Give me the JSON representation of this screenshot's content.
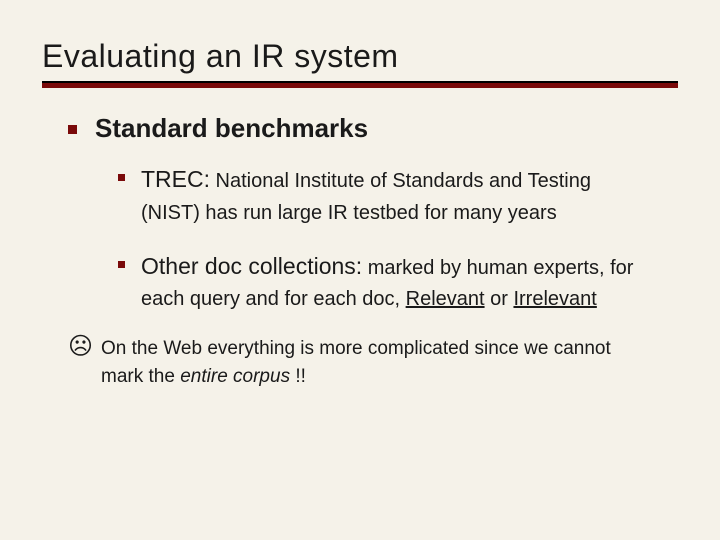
{
  "title": "Evaluating an IR system",
  "accent_color": "#7a0a0a",
  "background_color": "#f5f2e9",
  "level1": {
    "heading": "Standard benchmarks"
  },
  "item_trec": {
    "lead": "TREC:",
    "rest": " National Institute of Standards and Testing (NIST) has run large IR testbed for many years"
  },
  "item_other": {
    "lead": "Other doc collections:",
    "rest1": " marked by human experts, for each query and for each doc, ",
    "rel": "Relevant",
    "or": " or ",
    "irrel": "Irrelevant"
  },
  "footer": {
    "icon": "☹",
    "part1": "On the Web everything is more complicated since we cannot mark the ",
    "italic": "entire corpus",
    "part2": " !!"
  }
}
